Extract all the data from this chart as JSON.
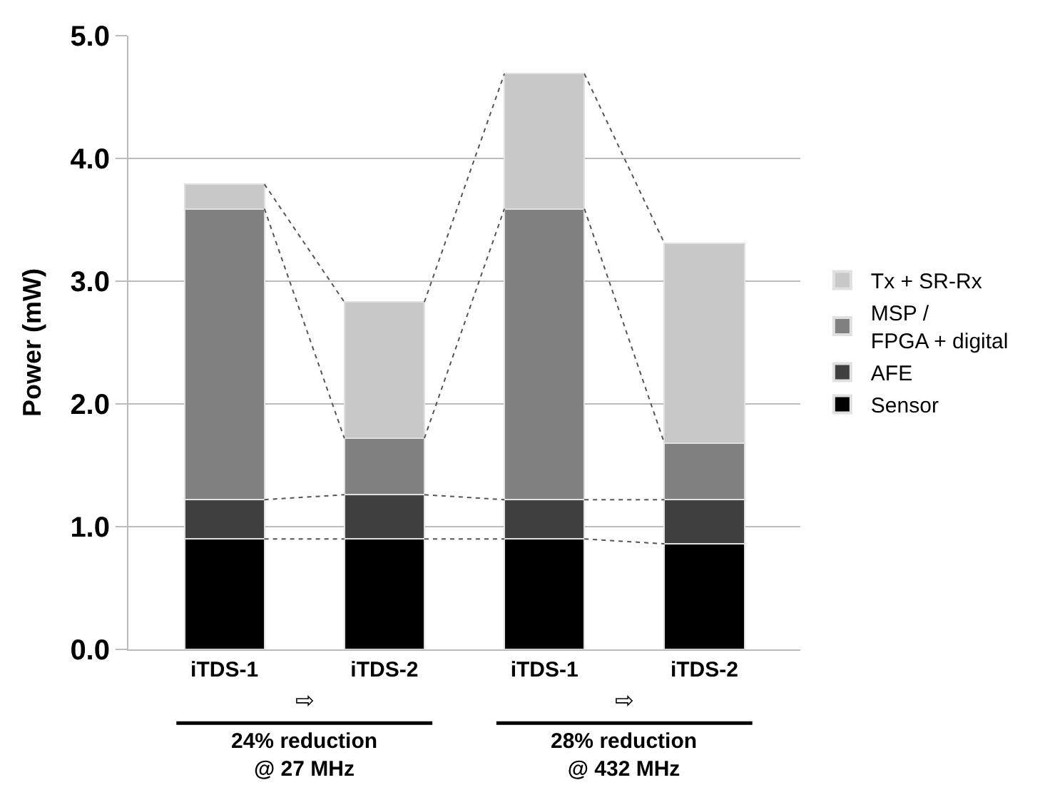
{
  "chart_data": {
    "type": "bar",
    "stacked": true,
    "ylabel": "Power (mW)",
    "categories": [
      "iTDS-1",
      "iTDS-2",
      "iTDS-1",
      "iTDS-2"
    ],
    "series": [
      {
        "name": "Sensor",
        "color": "#000000",
        "values": [
          0.9,
          0.9,
          0.9,
          0.86
        ]
      },
      {
        "name": "AFE",
        "color": "#404040",
        "values": [
          0.32,
          0.36,
          0.32,
          0.36
        ]
      },
      {
        "name": "MSP /\nFPGA + digital",
        "color": "#808080",
        "values": [
          2.37,
          0.46,
          2.37,
          0.46
        ]
      },
      {
        "name": "Tx + SR-Rx",
        "color": "#c8c8c8",
        "values": [
          0.2,
          1.11,
          1.1,
          1.63
        ]
      }
    ],
    "ylim": [
      0,
      5
    ],
    "yticks": [
      {
        "value": 0,
        "label": "0.0"
      },
      {
        "value": 1,
        "label": "1.0"
      },
      {
        "value": 2,
        "label": "2.0"
      },
      {
        "value": 3,
        "label": "3.0"
      },
      {
        "value": 4,
        "label": "4.0"
      },
      {
        "value": 5,
        "label": "5.0"
      }
    ],
    "grid": "y",
    "legend": "right",
    "annotations": [
      "⇨",
      "⇨",
      "24% reduction\n@ 27 MHz",
      "28% reduction\n@ 432 MHz"
    ]
  }
}
